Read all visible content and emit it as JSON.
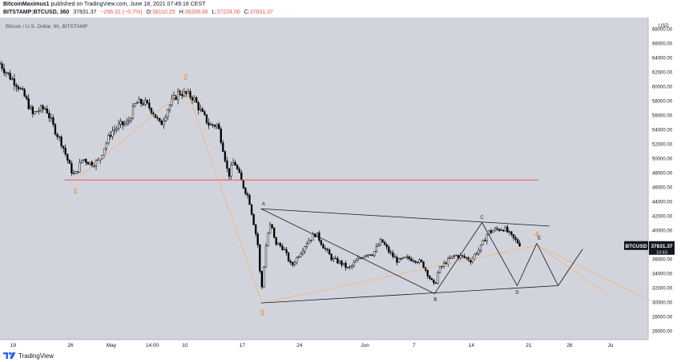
{
  "header": {
    "author": "BitcoinMaximus1",
    "published_text": "published on TradingView.com, June 18, 2021 07:49:18 CEST",
    "symbol_line": "BITSTAMP:BTCUSD, 360",
    "last": "37831.37",
    "change": "−266.31 (−0.7%)",
    "o_label": "O:",
    "o_value": "38110.25",
    "h_label": "H:",
    "h_value": "38208.68",
    "l_label": "L:",
    "l_value": "37224.00",
    "c_label": "C:",
    "c_value": "37831.37"
  },
  "footer": {
    "brand": "TradingView",
    "logo_icon": "tradingview-logo-icon"
  },
  "colors": {
    "plot_bg": "#d1d4dc",
    "candle": "#000000",
    "support_line": "#ef5350",
    "wave_label": "#f57c00",
    "count_line": "#f7b27a",
    "pattern_line": "#131722"
  },
  "chart_data": {
    "type": "candlestick",
    "pane_title": "Bitcoin / U.S. Dollar, 6h, BITSTAMP",
    "currency_label": "USD",
    "y_ticks": [
      26000,
      28000,
      30000,
      32000,
      34000,
      36000,
      38000,
      40000,
      42000,
      44000,
      46000,
      48000,
      50000,
      52000,
      54000,
      56000,
      58000,
      60000,
      62000,
      64000,
      66000,
      68000
    ],
    "y_tick_labels": [
      "26000.00",
      "28000.00",
      "30000.00",
      "32000.00",
      "34000.00",
      "36000.00",
      "38000.00",
      "40000.00",
      "42000.00",
      "44000.00",
      "46000.00",
      "48000.00",
      "50000.00",
      "52000.00",
      "54000.00",
      "56000.00",
      "58000.00",
      "60000.00",
      "62000.00",
      "64000.00",
      "66000.00",
      "68000.00"
    ],
    "ylim": [
      24800,
      69600
    ],
    "x_ticks": [
      {
        "label": "19",
        "day": 0
      },
      {
        "label": "26",
        "day": 7
      },
      {
        "label": "May",
        "day": 12
      },
      {
        "label": "14:00",
        "day": 17
      },
      {
        "label": "10",
        "day": 21
      },
      {
        "label": "17",
        "day": 28
      },
      {
        "label": "24",
        "day": 35
      },
      {
        "label": "Jun",
        "day": 43
      },
      {
        "label": "7",
        "day": 49
      },
      {
        "label": "14",
        "day": 56
      },
      {
        "label": "21",
        "day": 63
      },
      {
        "label": "26",
        "day": 68
      },
      {
        "label": "Ju",
        "day": 73
      }
    ],
    "xlim": [
      -1.6,
      77.6
    ],
    "price_badge": {
      "symbol": "BTCUSD",
      "price": "37831.37",
      "countdown": "10:43",
      "value": 37831.37
    },
    "path": [
      [
        -1.6,
        63200
      ],
      [
        -0.5,
        61500
      ],
      [
        0.5,
        60300
      ],
      [
        1.5,
        58400
      ],
      [
        2.4,
        56100
      ],
      [
        3.0,
        56700
      ],
      [
        4.0,
        57000
      ],
      [
        5.0,
        54200
      ],
      [
        6.0,
        52000
      ],
      [
        7.0,
        48600
      ],
      [
        7.5,
        47500
      ],
      [
        8.5,
        50000
      ],
      [
        9.5,
        49300
      ],
      [
        10.5,
        49600
      ],
      [
        11.0,
        51200
      ],
      [
        12.0,
        53700
      ],
      [
        13.0,
        54600
      ],
      [
        14.0,
        54900
      ],
      [
        15.0,
        57700
      ],
      [
        16.0,
        57800
      ],
      [
        17.0,
        56700
      ],
      [
        18.0,
        54600
      ],
      [
        19.0,
        57200
      ],
      [
        19.8,
        58500
      ],
      [
        20.2,
        59200
      ],
      [
        21.0,
        59000
      ],
      [
        22.0,
        58500
      ],
      [
        23.0,
        56400
      ],
      [
        24.0,
        54600
      ],
      [
        25.0,
        54700
      ],
      [
        25.8,
        50700
      ],
      [
        26.3,
        47500
      ],
      [
        27.0,
        49700
      ],
      [
        28.0,
        46500
      ],
      [
        28.8,
        44500
      ],
      [
        29.5,
        40500
      ],
      [
        30.0,
        37400
      ],
      [
        30.3,
        31000
      ],
      [
        31.0,
        39000
      ],
      [
        31.5,
        41000
      ],
      [
        32.0,
        38300
      ],
      [
        33.0,
        37600
      ],
      [
        34.0,
        35000
      ],
      [
        35.0,
        36800
      ],
      [
        36.0,
        38500
      ],
      [
        37.0,
        39600
      ],
      [
        38.0,
        37600
      ],
      [
        39.0,
        36000
      ],
      [
        40.0,
        35500
      ],
      [
        41.0,
        34600
      ],
      [
        42.0,
        35800
      ],
      [
        43.0,
        36700
      ],
      [
        44.0,
        36800
      ],
      [
        45.0,
        38600
      ],
      [
        46.0,
        36900
      ],
      [
        47.0,
        35700
      ],
      [
        48.0,
        36100
      ],
      [
        49.0,
        36000
      ],
      [
        50.0,
        35400
      ],
      [
        51.0,
        33200
      ],
      [
        51.5,
        32200
      ],
      [
        52.0,
        34500
      ],
      [
        53.0,
        35700
      ],
      [
        54.0,
        36500
      ],
      [
        55.0,
        36300
      ],
      [
        56.0,
        35800
      ],
      [
        56.6,
        37000
      ],
      [
        57.0,
        37300
      ],
      [
        58.0,
        39700
      ],
      [
        59.0,
        40100
      ],
      [
        60.0,
        40300
      ],
      [
        61.0,
        39000
      ],
      [
        62.0,
        38000
      ]
    ],
    "support_level": {
      "value": 47000,
      "from_day": 6.3,
      "to_day": 64.2
    },
    "waves": [
      {
        "label": "1",
        "day": 7.6,
        "value": 47000,
        "label_value": 45500
      },
      {
        "label": "2",
        "day": 21.1,
        "value": 59800,
        "label_value": 61300
      },
      {
        "label": "3",
        "day": 30.4,
        "value": 29900,
        "label_value": 28500
      },
      {
        "label": "4",
        "day": 64.0,
        "value": 37900,
        "label_value": 39500
      },
      {
        "label": "",
        "day": 72.5,
        "value": 31300,
        "label_value": null
      }
    ],
    "triangle_upper": [
      [
        30.3,
        43000
      ],
      [
        65.5,
        40600
      ]
    ],
    "triangle_lower": [
      [
        30.3,
        29900
      ],
      [
        66.5,
        32300
      ]
    ],
    "triangle_path": [
      [
        30.3,
        43000
      ],
      [
        51.5,
        31200
      ],
      [
        57.3,
        41100
      ],
      [
        61.6,
        32300
      ],
      [
        64.0,
        38200
      ]
    ],
    "points": [
      {
        "label": "A",
        "day": 30.6,
        "value": 43700
      },
      {
        "label": "B",
        "day": 51.6,
        "value": 30400
      },
      {
        "label": "C",
        "day": 57.3,
        "value": 41800
      },
      {
        "label": "D",
        "day": 61.6,
        "value": 31400
      },
      {
        "label": "E",
        "day": 64.3,
        "value": 39000
      }
    ]
  }
}
